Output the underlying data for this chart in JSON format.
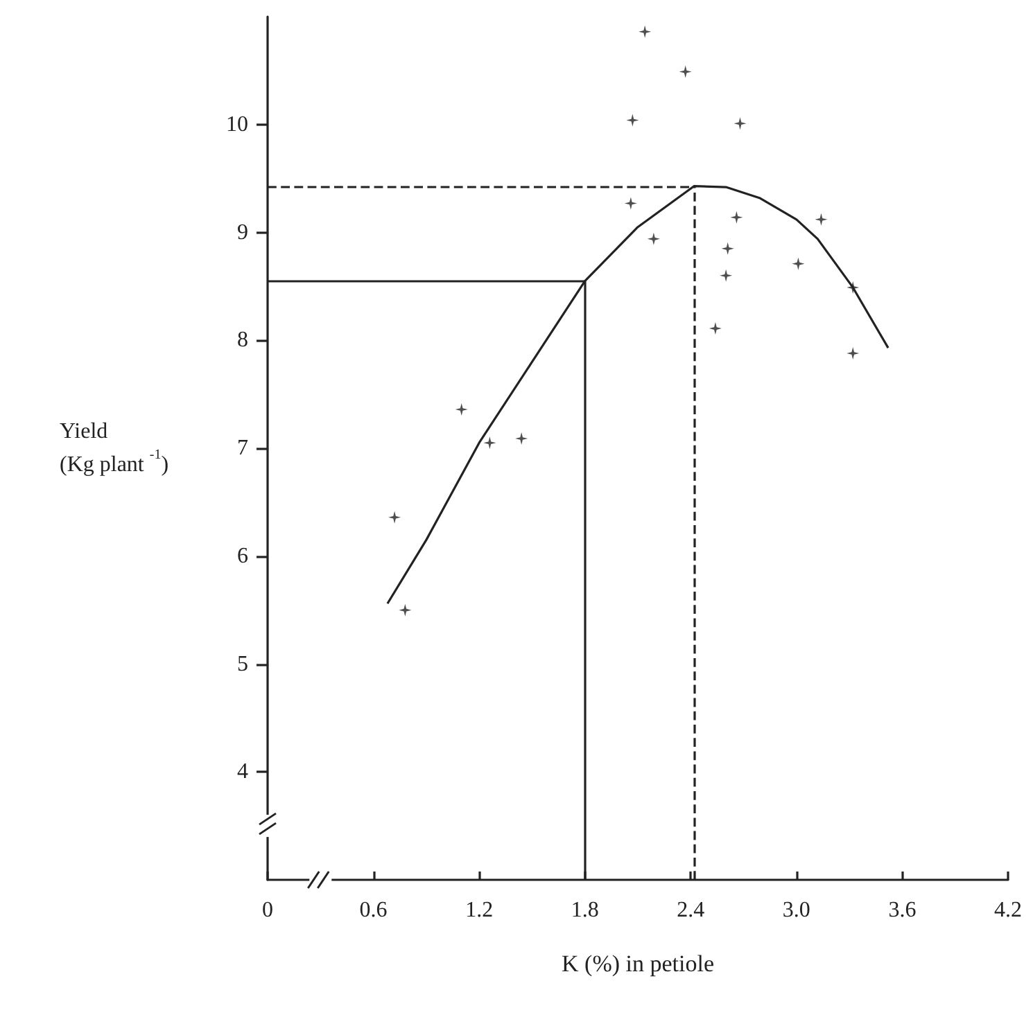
{
  "chart_data": {
    "type": "scatter",
    "xlabel": "K (%) in petiole",
    "ylabel": "Yield\n(Kg plant $^{-1}$)",
    "xlim": [
      0,
      4.2
    ],
    "xticks": [
      0,
      0.6,
      1.2,
      1.8,
      2.4,
      {
        "value": 3.0,
        "label": "3.0"
      },
      3.6,
      4.2
    ],
    "ylim": [
      3,
      11
    ],
    "yticks": [
      4,
      5,
      6,
      7,
      8,
      9,
      10
    ],
    "grid": false,
    "marker": "star",
    "series": [
      {
        "color": "#222222",
        "x": [
          2.14,
          2.07,
          2.37,
          2.68,
          2.06,
          2.19,
          2.66,
          2.61,
          2.6,
          2.54,
          3.14,
          3.01,
          3.32,
          3.32,
          1.1,
          1.26,
          1.44,
          0.72,
          0.78
        ],
        "values": [
          10.86,
          10.04,
          10.49,
          10.01,
          9.27,
          8.94,
          9.14,
          8.85,
          8.6,
          8.11,
          9.12,
          8.71,
          8.49,
          7.88,
          7.36,
          7.05,
          7.09,
          6.36,
          5.5
        ]
      },
      {
        "type": "line",
        "color": "#222222",
        "marker": "none",
        "line_style": "solid",
        "x": [
          0.68,
          0.9,
          1.2,
          1.5,
          1.8,
          2.1,
          2.42,
          2.6,
          2.79,
          3.0,
          3.12,
          3.32,
          3.52
        ],
        "values": [
          5.56,
          6.15,
          7.05,
          7.8,
          8.55,
          9.05,
          9.43,
          9.42,
          9.32,
          9.12,
          8.94,
          8.49,
          7.93
        ]
      }
    ],
    "ref_lines": [
      {
        "axis": "y",
        "value": 9.43,
        "color": "#222222",
        "line_style": "dashed"
      },
      {
        "axis": "x",
        "value": 2.42,
        "color": "#222222",
        "line_style": "dashed"
      },
      {
        "axis": "y",
        "value": 8.55,
        "color": "#222222",
        "line_style": "solid"
      },
      {
        "axis": "x",
        "value": 1.8,
        "color": "#222222",
        "line_style": "solid"
      }
    ]
  }
}
